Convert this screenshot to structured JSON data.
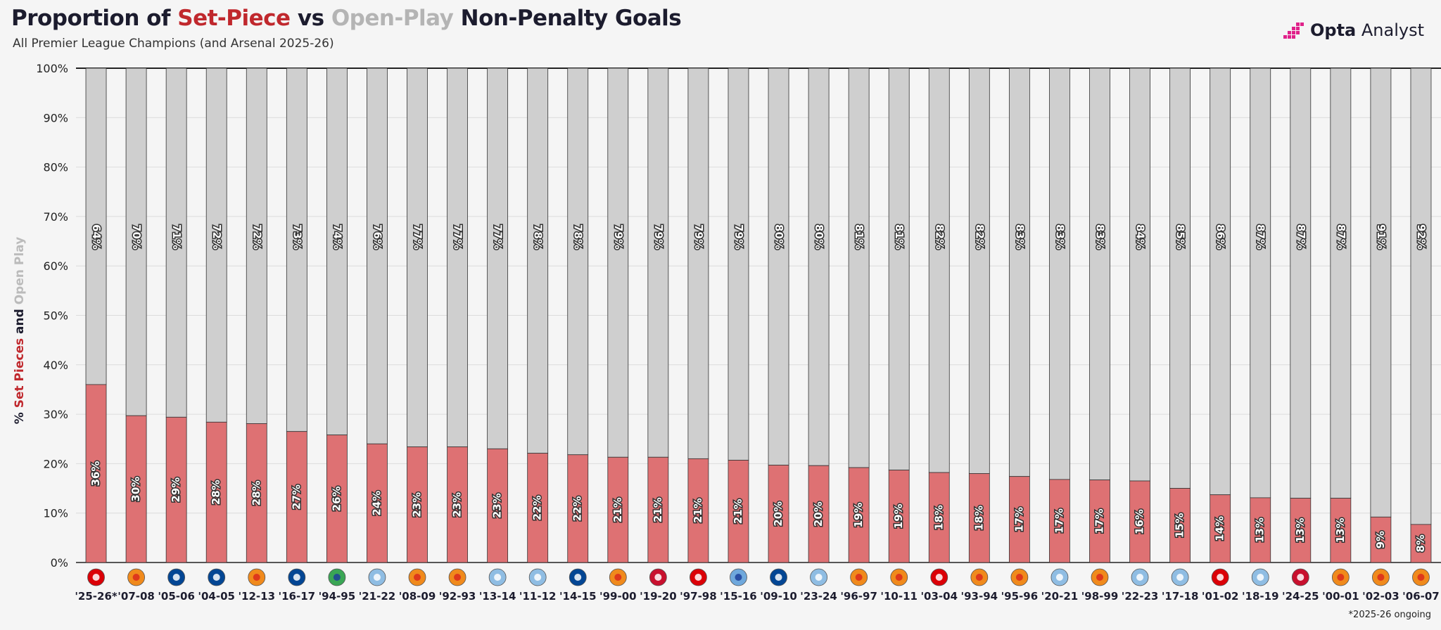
{
  "header": {
    "title_prefix": "Proportion of ",
    "title_setpiece": "Set-Piece",
    "title_vs": " vs ",
    "title_openplay": "Open-Play",
    "title_suffix": " Non-Penalty Goals",
    "subtitle": "All Premier League Champions (and Arsenal 2025-26)"
  },
  "brand": {
    "bold": "Opta",
    "text": " Analyst"
  },
  "yaxis": {
    "prefix": "% ",
    "setpiece": "Set Pieces",
    "and": " and ",
    "openplay": "Open Play"
  },
  "footnote": "*2025-26 ongoing",
  "colors": {
    "set_piece": "#de7173",
    "open_play": "#cfcfcf",
    "title_setpiece": "#c0282d",
    "title_openplay": "#b4b4b4",
    "text_dark": "#1c1c2e"
  },
  "chart_data": {
    "type": "bar",
    "stacked": true,
    "ylim": [
      0,
      100
    ],
    "yticks": [
      "0%",
      "10%",
      "20%",
      "30%",
      "40%",
      "50%",
      "60%",
      "70%",
      "80%",
      "90%",
      "100%"
    ],
    "categories": [
      "'25-26*",
      "'07-08",
      "'05-06",
      "'04-05",
      "'12-13",
      "'16-17",
      "'94-95",
      "'21-22",
      "'08-09",
      "'92-93",
      "'13-14",
      "'11-12",
      "'14-15",
      "'99-00",
      "'19-20",
      "'97-98",
      "'15-16",
      "'09-10",
      "'23-24",
      "'96-97",
      "'10-11",
      "'03-04",
      "'93-94",
      "'95-96",
      "'20-21",
      "'98-99",
      "'22-23",
      "'17-18",
      "'01-02",
      "'18-19",
      "'24-25",
      "'00-01",
      "'02-03",
      "'06-07"
    ],
    "club_icons": [
      "arsenal-crest-icon",
      "man-utd-crest-icon",
      "chelsea-crest-icon",
      "chelsea-crest-icon",
      "man-utd-crest-icon",
      "chelsea-crest-icon",
      "blackburn-crest-icon",
      "man-city-crest-icon",
      "man-utd-crest-icon",
      "man-utd-crest-icon",
      "man-city-crest-icon",
      "man-city-crest-icon",
      "chelsea-crest-icon",
      "man-utd-crest-icon",
      "liverpool-crest-icon",
      "arsenal-crest-icon",
      "leicester-crest-icon",
      "chelsea-crest-icon",
      "man-city-crest-icon",
      "man-utd-crest-icon",
      "man-utd-crest-icon",
      "arsenal-crest-icon",
      "man-utd-crest-icon",
      "man-utd-crest-icon",
      "man-city-crest-icon",
      "man-utd-crest-icon",
      "man-city-crest-icon",
      "man-city-crest-icon",
      "arsenal-crest-icon",
      "man-city-crest-icon",
      "liverpool-crest-icon",
      "man-utd-crest-icon",
      "man-utd-crest-icon",
      "man-utd-crest-icon"
    ],
    "series": [
      {
        "name": "Set Pieces",
        "values": [
          36,
          29.7,
          29.4,
          28.4,
          28.1,
          26.5,
          25.8,
          24,
          23.4,
          23.4,
          23,
          22.1,
          21.8,
          21.3,
          21.3,
          21,
          20.7,
          19.7,
          19.6,
          19.2,
          18.7,
          18.2,
          18,
          17.4,
          16.8,
          16.7,
          16.5,
          15,
          13.7,
          13.1,
          13,
          13,
          9.2,
          7.7
        ],
        "labels": [
          "36%",
          "30%",
          "29%",
          "28%",
          "28%",
          "27%",
          "26%",
          "24%",
          "23%",
          "23%",
          "23%",
          "22%",
          "22%",
          "21%",
          "21%",
          "21%",
          "21%",
          "20%",
          "20%",
          "19%",
          "19%",
          "18%",
          "18%",
          "17%",
          "17%",
          "17%",
          "16%",
          "15%",
          "14%",
          "13%",
          "13%",
          "13%",
          "9%",
          "8%"
        ]
      },
      {
        "name": "Open Play",
        "values": [
          64,
          70.3,
          70.6,
          71.6,
          71.9,
          73.5,
          74.2,
          76,
          76.6,
          76.6,
          77,
          77.9,
          78.2,
          78.7,
          78.7,
          79,
          79.3,
          80.3,
          80.4,
          80.8,
          81.3,
          81.8,
          82,
          82.6,
          83.2,
          83.3,
          83.5,
          85,
          86.3,
          86.9,
          87,
          87,
          90.8,
          92.3
        ],
        "labels": [
          "64%",
          "70%",
          "71%",
          "72%",
          "72%",
          "73%",
          "74%",
          "76%",
          "77%",
          "77%",
          "77%",
          "78%",
          "78%",
          "79%",
          "79%",
          "79%",
          "79%",
          "80%",
          "80%",
          "81%",
          "81%",
          "82%",
          "82%",
          "83%",
          "83%",
          "83%",
          "84%",
          "85%",
          "86%",
          "87%",
          "87%",
          "87%",
          "91%",
          "92%"
        ]
      }
    ]
  }
}
